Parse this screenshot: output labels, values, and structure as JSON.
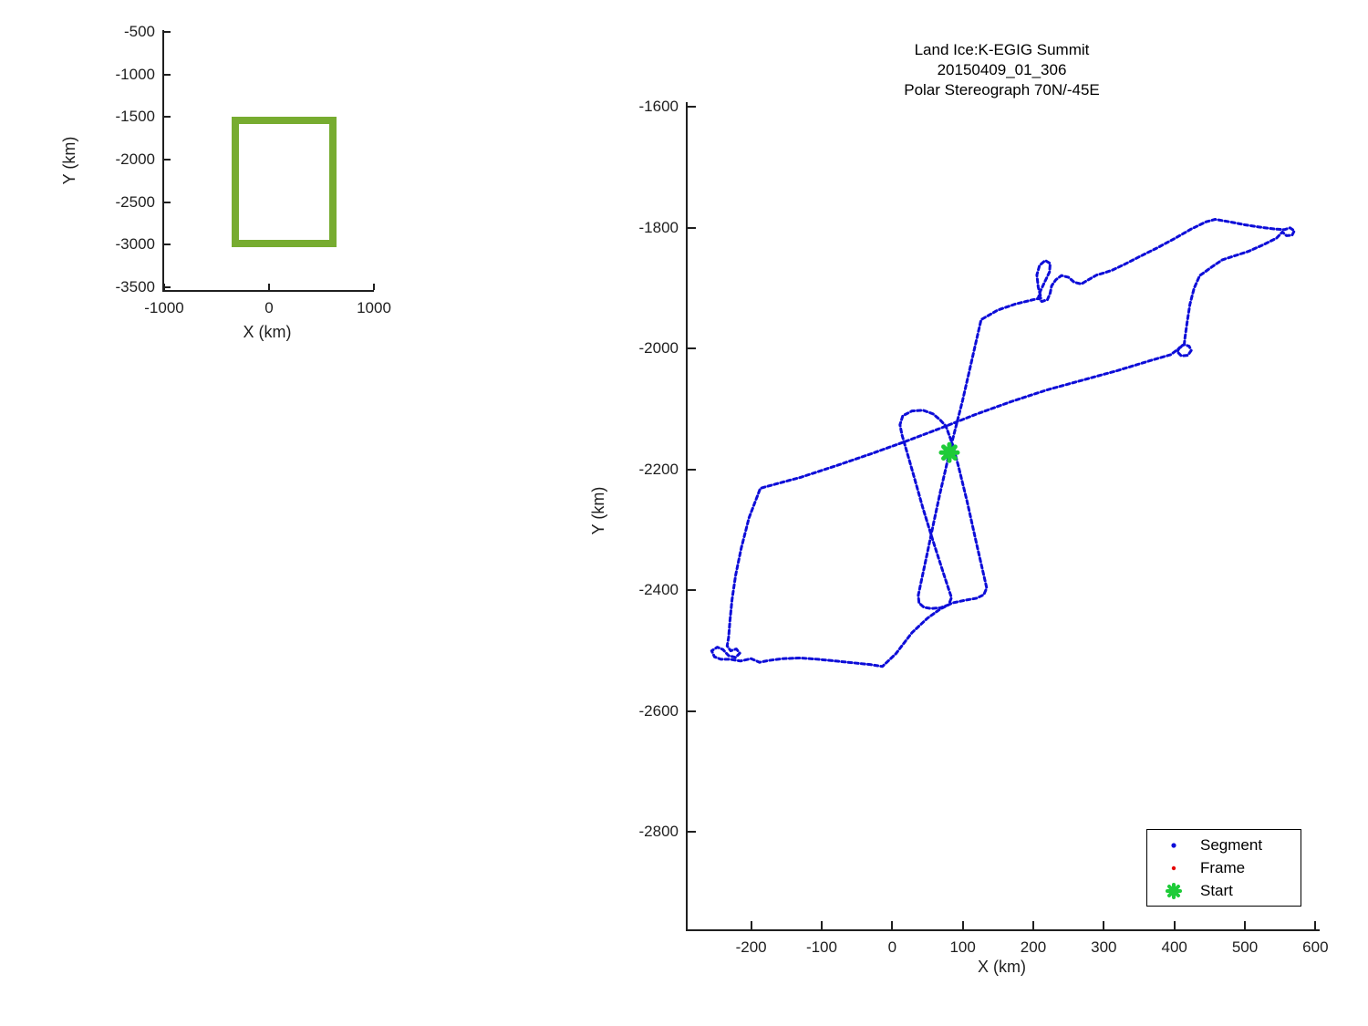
{
  "colors": {
    "segment_blue": "#0d0dd8",
    "frame_red": "#e60000",
    "start_green": "#1ecb38",
    "overview_green": "#77ac30",
    "axis": "#1f1f1f"
  },
  "legend": {
    "items": [
      {
        "label": "Segment",
        "marker": "dot",
        "color": "#0d0dd8"
      },
      {
        "label": "Frame",
        "marker": "dot",
        "color": "#e60000"
      },
      {
        "label": "Start",
        "marker": "star",
        "color": "#1ecb38"
      }
    ]
  },
  "chart_data": [
    {
      "name": "overview-map",
      "type": "line",
      "title": "",
      "xlabel": "X (km)",
      "ylabel": "Y (km)",
      "xlim": [
        -1000,
        1000
      ],
      "ylim": [
        -3533,
        -478
      ],
      "xticks": [
        -1000,
        0,
        1000
      ],
      "yticks": [
        -500,
        -1000,
        -1500,
        -2000,
        -2500,
        -3000,
        -3500
      ],
      "grid": false,
      "rect": {
        "x": [
          -325,
          605
        ],
        "y": [
          -2990,
          -1540
        ],
        "color": "#77ac30"
      }
    },
    {
      "name": "flight-track",
      "type": "line",
      "title_lines": [
        "Land Ice:K-EGIG Summit",
        "20150409_01_306",
        "Polar Stereograph 70N/-45E"
      ],
      "xlabel": "X (km)",
      "ylabel": "Y (km)",
      "xlim": [
        -290,
        606
      ],
      "ylim": [
        -2961,
        -1592
      ],
      "xticks": [
        -200,
        -100,
        0,
        100,
        200,
        300,
        400,
        500,
        600
      ],
      "yticks": [
        -1600,
        -1800,
        -2000,
        -2200,
        -2400,
        -2600,
        -2800
      ],
      "grid": false,
      "legend_position": "lower right",
      "start": {
        "label": "Start",
        "x": 81,
        "y": -2172,
        "color": "#1ecb38"
      },
      "series": [
        {
          "name": "Segment",
          "color": "#0d0dd8",
          "points": [
            [
              81,
              -2172
            ],
            [
              100,
              -2085
            ],
            [
              126,
              -1952
            ],
            [
              150,
              -1936
            ],
            [
              175,
              -1926
            ],
            [
              200,
              -1919
            ],
            [
              211,
              -1916
            ],
            [
              207,
              -1898
            ],
            [
              205,
              -1878
            ],
            [
              209,
              -1862
            ],
            [
              217,
              -1854
            ],
            [
              224,
              -1859
            ],
            [
              223,
              -1873
            ],
            [
              216,
              -1890
            ],
            [
              210,
              -1905
            ],
            [
              207,
              -1916
            ],
            [
              212,
              -1922
            ],
            [
              220,
              -1919
            ],
            [
              224,
              -1908
            ],
            [
              226,
              -1896
            ],
            [
              232,
              -1886
            ],
            [
              240,
              -1879
            ],
            [
              250,
              -1882
            ],
            [
              258,
              -1890
            ],
            [
              268,
              -1893
            ],
            [
              278,
              -1886
            ],
            [
              290,
              -1878
            ],
            [
              302,
              -1874
            ],
            [
              312,
              -1870
            ],
            [
              330,
              -1860
            ],
            [
              352,
              -1847
            ],
            [
              376,
              -1833
            ],
            [
              400,
              -1818
            ],
            [
              424,
              -1802
            ],
            [
              445,
              -1790
            ],
            [
              458,
              -1786
            ],
            [
              478,
              -1790
            ],
            [
              500,
              -1795
            ],
            [
              522,
              -1799
            ],
            [
              542,
              -1802
            ],
            [
              556,
              -1803
            ],
            [
              564,
              -1800
            ],
            [
              570,
              -1805
            ],
            [
              567,
              -1812
            ],
            [
              559,
              -1813
            ],
            [
              553,
              -1807
            ],
            [
              545,
              -1817
            ],
            [
              526,
              -1828
            ],
            [
              505,
              -1839
            ],
            [
              484,
              -1847
            ],
            [
              468,
              -1853
            ],
            [
              454,
              -1864
            ],
            [
              441,
              -1875
            ],
            [
              436,
              -1879
            ],
            [
              428,
              -1900
            ],
            [
              422,
              -1927
            ],
            [
              418,
              -1957
            ],
            [
              415,
              -1982
            ],
            [
              414,
              -1993
            ],
            [
              421,
              -1996
            ],
            [
              424,
              -2003
            ],
            [
              419,
              -2011
            ],
            [
              410,
              -2012
            ],
            [
              404,
              -2005
            ],
            [
              408,
              -1997
            ],
            [
              414,
              -1993
            ],
            [
              395,
              -2010
            ],
            [
              365,
              -2020
            ],
            [
              320,
              -2036
            ],
            [
              270,
              -2052
            ],
            [
              220,
              -2068
            ],
            [
              170,
              -2087
            ],
            [
              120,
              -2108
            ],
            [
              70,
              -2131
            ],
            [
              20,
              -2153
            ],
            [
              -30,
              -2174
            ],
            [
              -80,
              -2194
            ],
            [
              -130,
              -2213
            ],
            [
              -165,
              -2224
            ],
            [
              -187,
              -2231
            ],
            [
              -203,
              -2280
            ],
            [
              -214,
              -2330
            ],
            [
              -222,
              -2375
            ],
            [
              -227,
              -2415
            ],
            [
              -230,
              -2450
            ],
            [
              -232,
              -2478
            ],
            [
              -234,
              -2492
            ],
            [
              -229,
              -2500
            ],
            [
              -221,
              -2497
            ],
            [
              -216,
              -2504
            ],
            [
              -222,
              -2511
            ],
            [
              -232,
              -2508
            ],
            [
              -240,
              -2498
            ],
            [
              -248,
              -2494
            ],
            [
              -256,
              -2500
            ],
            [
              -252,
              -2510
            ],
            [
              -243,
              -2514
            ],
            [
              -230,
              -2514
            ],
            [
              -215,
              -2517
            ],
            [
              -200,
              -2513
            ],
            [
              -188,
              -2519
            ],
            [
              -175,
              -2516
            ],
            [
              -155,
              -2513
            ],
            [
              -130,
              -2512
            ],
            [
              -105,
              -2514
            ],
            [
              -80,
              -2517
            ],
            [
              -55,
              -2520
            ],
            [
              -30,
              -2523
            ],
            [
              -14,
              -2526
            ],
            [
              5,
              -2505
            ],
            [
              28,
              -2470
            ],
            [
              50,
              -2446
            ],
            [
              68,
              -2431
            ],
            [
              85,
              -2421
            ],
            [
              105,
              -2416
            ],
            [
              120,
              -2413
            ],
            [
              130,
              -2407
            ],
            [
              134,
              -2396
            ],
            [
              120,
              -2325
            ],
            [
              106,
              -2252
            ],
            [
              94,
              -2195
            ],
            [
              86,
              -2160
            ],
            [
              76,
              -2128
            ],
            [
              68,
              -2118
            ],
            [
              58,
              -2108
            ],
            [
              44,
              -2102
            ],
            [
              28,
              -2103
            ],
            [
              15,
              -2111
            ],
            [
              11,
              -2126
            ],
            [
              14,
              -2143
            ],
            [
              17,
              -2155
            ],
            [
              30,
              -2208
            ],
            [
              43,
              -2262
            ],
            [
              57,
              -2315
            ],
            [
              70,
              -2362
            ],
            [
              80,
              -2398
            ],
            [
              84,
              -2412
            ],
            [
              80,
              -2424
            ],
            [
              68,
              -2429
            ],
            [
              55,
              -2430
            ],
            [
              45,
              -2428
            ],
            [
              38,
              -2421
            ],
            [
              37,
              -2408
            ],
            [
              48,
              -2348
            ],
            [
              58,
              -2292
            ],
            [
              68,
              -2238
            ],
            [
              76,
              -2198
            ],
            [
              81,
              -2172
            ]
          ]
        }
      ]
    }
  ]
}
